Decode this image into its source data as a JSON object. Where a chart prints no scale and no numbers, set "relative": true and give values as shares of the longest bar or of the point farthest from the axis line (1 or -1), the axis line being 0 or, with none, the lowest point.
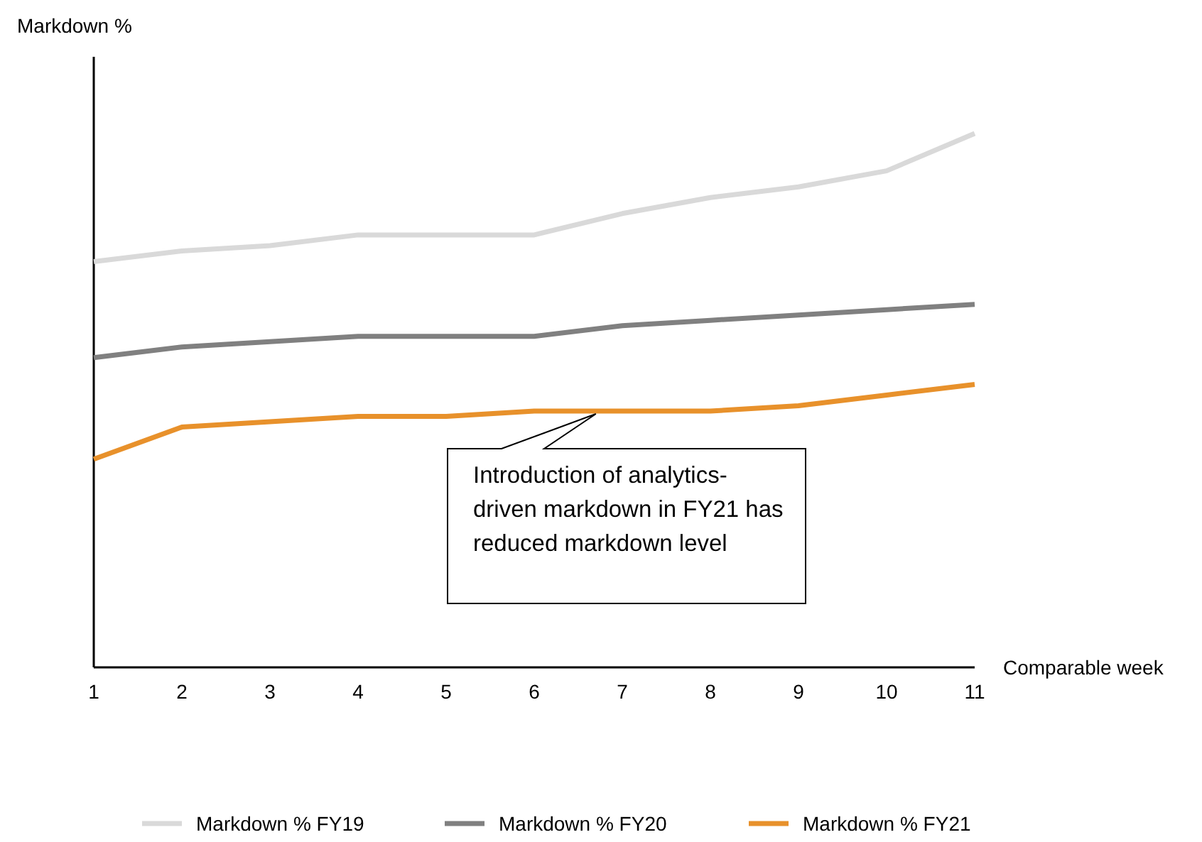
{
  "chart_data": {
    "type": "line",
    "relative": true,
    "ylabel": "Markdown %",
    "xlabel": "Comparable week",
    "x": [
      1,
      2,
      3,
      4,
      5,
      6,
      7,
      8,
      9,
      10,
      11
    ],
    "xlim": [
      1,
      11
    ],
    "xticks": [
      1,
      2,
      3,
      4,
      5,
      6,
      7,
      8,
      9,
      10,
      11
    ],
    "series": [
      {
        "name": "Markdown % FY19",
        "color": "#d9d9d9",
        "values": [
          0.76,
          0.78,
          0.79,
          0.81,
          0.81,
          0.81,
          0.85,
          0.88,
          0.9,
          0.93,
          1
        ]
      },
      {
        "name": "Markdown % FY20",
        "color": "#808080",
        "values": [
          0.58,
          0.6,
          0.61,
          0.62,
          0.62,
          0.62,
          0.64,
          0.65,
          0.66,
          0.67,
          0.68
        ]
      },
      {
        "name": "Markdown % FY21",
        "color": "#e8912b",
        "values": [
          0.39,
          0.45,
          0.46,
          0.47,
          0.47,
          0.48,
          0.48,
          0.48,
          0.49,
          0.51,
          0.53
        ]
      }
    ],
    "annotations": [
      {
        "text": "Introduction of analytics-driven markdown in FY21 has reduced markdown level",
        "x": 6.7,
        "y": 0.48
      }
    ],
    "legend": "bottom",
    "grid": false,
    "marker": "none",
    "line_style": "solid"
  }
}
